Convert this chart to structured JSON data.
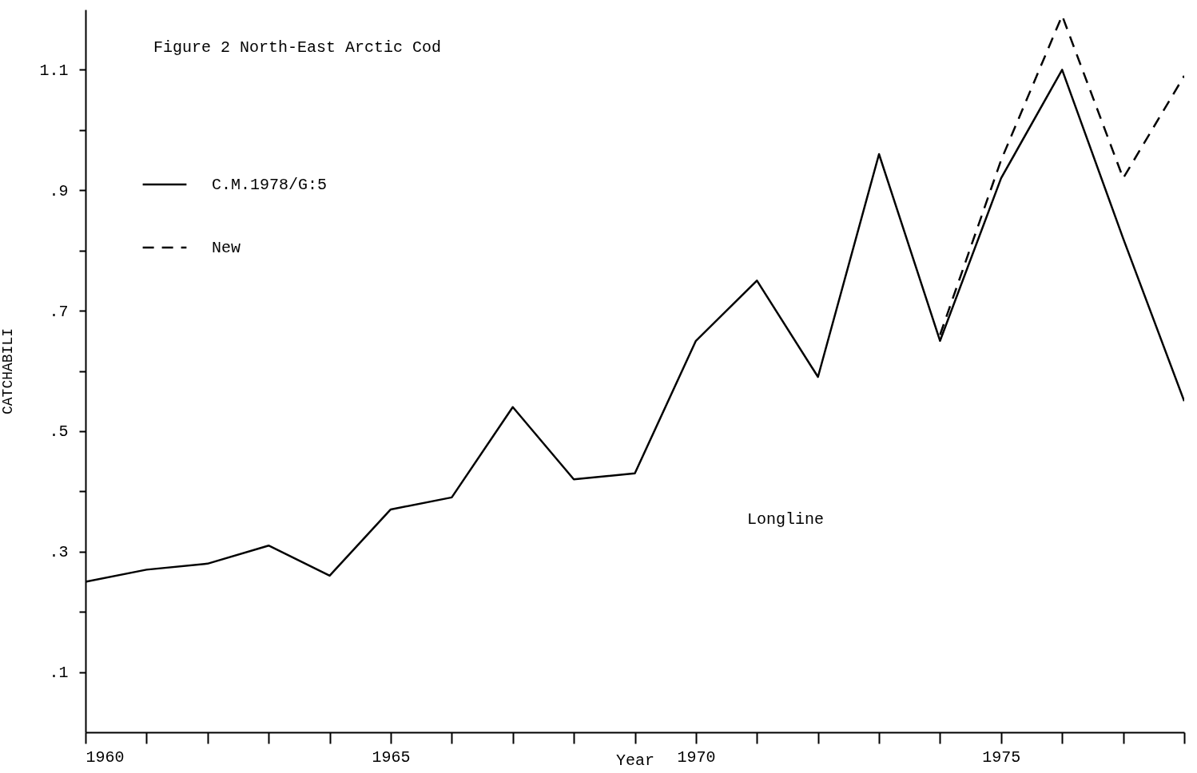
{
  "chart_data": {
    "type": "line",
    "title": "Figure 2 North-East Arctic Cod",
    "xlabel": "Year",
    "ylabel": "CATCHABILI",
    "annotations": [
      "Longline"
    ],
    "x": [
      1960,
      1961,
      1962,
      1963,
      1964,
      1965,
      1966,
      1967,
      1968,
      1969,
      1970,
      1971,
      1972,
      1973,
      1974,
      1975,
      1976,
      1977,
      1978
    ],
    "series": [
      {
        "name": "C.M.1978/G:5",
        "color": "#000000",
        "line_style": "solid",
        "values": [
          0.25,
          0.27,
          0.28,
          0.31,
          0.26,
          0.37,
          0.39,
          0.54,
          0.42,
          0.43,
          0.65,
          0.75,
          0.59,
          0.96,
          0.65,
          0.92,
          1.1,
          0.82,
          0.55
        ]
      },
      {
        "name": "New",
        "color": "#000000",
        "line_style": "dashed",
        "x": [
          1974,
          1975,
          1976,
          1977,
          1978
        ],
        "values": [
          0.66,
          0.95,
          1.19,
          0.92,
          1.09
        ]
      }
    ],
    "xlim": [
      1960,
      1978
    ],
    "xticks": [
      1960,
      {
        "value": 1961,
        "label": null
      },
      {
        "value": 1962,
        "label": null
      },
      {
        "value": 1963,
        "label": null
      },
      {
        "value": 1964,
        "label": null
      },
      1965,
      {
        "value": 1966,
        "label": null
      },
      {
        "value": 1967,
        "label": null
      },
      {
        "value": 1968,
        "label": null
      },
      {
        "value": 1969,
        "label": null
      },
      1970,
      {
        "value": 1971,
        "label": null
      },
      {
        "value": 1972,
        "label": null
      },
      {
        "value": 1973,
        "label": null
      },
      {
        "value": 1974,
        "label": null
      },
      1975,
      {
        "value": 1976,
        "label": null
      },
      {
        "value": 1977,
        "label": null
      },
      {
        "value": 1978,
        "label": null
      }
    ],
    "ylim": [
      0,
      1.2
    ],
    "yticks": [
      {
        "value": 0.1,
        "label": ".1"
      },
      {
        "value": 0.2,
        "label": null
      },
      {
        "value": 0.3,
        "label": ".3"
      },
      {
        "value": 0.4,
        "label": null
      },
      {
        "value": 0.5,
        "label": ".5"
      },
      {
        "value": 0.6,
        "label": null
      },
      {
        "value": 0.7,
        "label": ".7"
      },
      {
        "value": 0.8,
        "label": null
      },
      {
        "value": 0.9,
        "label": ".9"
      },
      {
        "value": 1.0,
        "label": null
      },
      {
        "value": 1.1,
        "label": "1.1"
      }
    ],
    "grid": false,
    "legend": "top left",
    "marker": "none"
  }
}
